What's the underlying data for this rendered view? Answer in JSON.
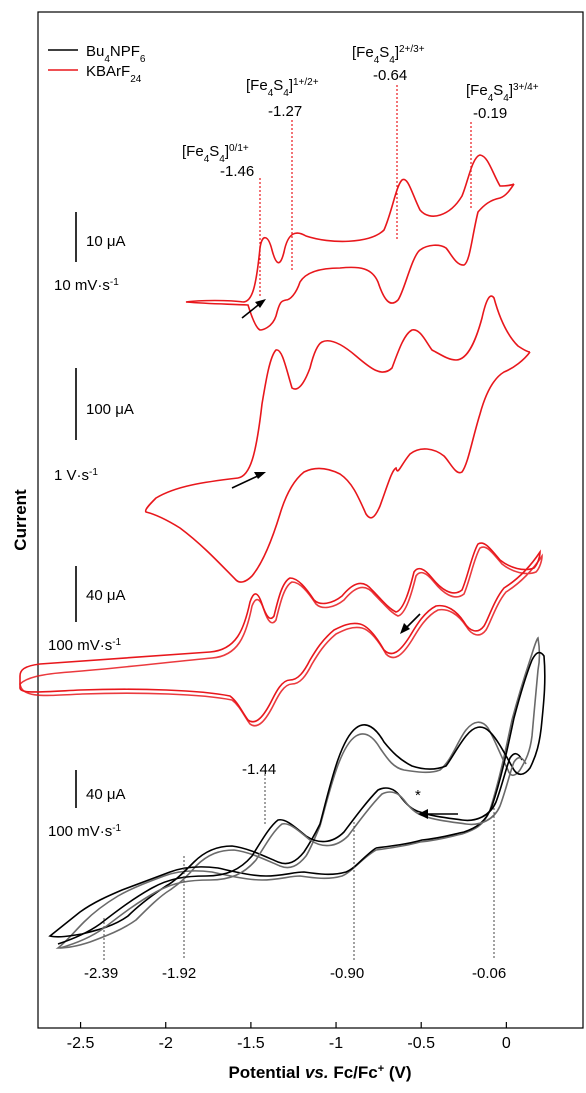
{
  "chart_data": {
    "type": "line",
    "xlabel": "Potential vs. Fc/Fc⁺ (V)",
    "xlabel_parts": {
      "pre": "Potential ",
      "italic": "vs.",
      "mid": " Fc/Fc",
      "sup": "+",
      "post": " (V)"
    },
    "ylabel": "Current",
    "xlim": [
      -2.75,
      0.45
    ],
    "x_ticks": [
      -2.5,
      -2,
      -1.5,
      -1,
      -0.5,
      0
    ],
    "x_tick_labels": [
      "-2.5",
      "-2",
      "-1.5",
      "-1",
      "-0.5",
      "0"
    ],
    "y_ticks_shown": false,
    "grid": false,
    "legend": {
      "placement": "top-left",
      "entries": [
        {
          "name": "Bu4NPF6",
          "base": "Bu",
          "sub1": "4",
          "mid": "NPF",
          "sub2": "6",
          "color": "#000000"
        },
        {
          "name": "KBArF24",
          "base": "KBArF",
          "sub1": "24",
          "color": "#e8171c"
        }
      ]
    },
    "colors": {
      "red": "#e8171c",
      "black": "#000000",
      "gray": "#6a6a6a"
    },
    "couple_labels": [
      {
        "prefix": "[Fe",
        "sub1": "4",
        "mid": "S",
        "sub2": "4",
        "close": "]",
        "sup": "0/1+",
        "value": "-1.46",
        "e": -1.46
      },
      {
        "prefix": "[Fe",
        "sub1": "4",
        "mid": "S",
        "sub2": "4",
        "close": "]",
        "sup": "1+/2+",
        "value": "-1.27",
        "e": -1.27
      },
      {
        "prefix": "[Fe",
        "sub1": "4",
        "mid": "S",
        "sub2": "4",
        "close": "]",
        "sup": "2+/3+",
        "value": "-0.64",
        "e": -0.64
      },
      {
        "prefix": "[Fe",
        "sub1": "4",
        "mid": "S",
        "sub2": "4",
        "close": "]",
        "sup": "3+/4+",
        "value": "-0.19",
        "e": -0.19
      }
    ],
    "traces": [
      {
        "name": "KBArF24 10 mV·s⁻¹",
        "electrolyte": "KBArF24",
        "scale_value": "10",
        "scale_unit": "μA",
        "rate_value": "10 mV·s",
        "rate_sup": "-1",
        "x_range": [
          -1.6,
          0.05
        ],
        "peaks_anodic": [
          -1.42,
          -1.22,
          -0.58,
          -0.15
        ],
        "peaks_cathodic": [
          -1.5,
          -1.33,
          -0.7,
          -0.23
        ]
      },
      {
        "name": "KBArF24 1 V·s⁻¹",
        "electrolyte": "KBArF24",
        "scale_value": "100",
        "scale_unit": "μA",
        "rate_value": "1 V·s",
        "rate_sup": "-1",
        "x_range": [
          -2.2,
          0.25
        ],
        "peaks_anodic": [
          -1.35,
          -1.12,
          -0.54,
          -0.07
        ],
        "peaks_cathodic": [
          -1.57,
          -1.37,
          -0.72,
          -0.25
        ]
      },
      {
        "name": "KBArF24 100 mV·s⁻¹",
        "electrolyte": "KBArF24",
        "scale_value": "40",
        "scale_unit": "μA",
        "rate_value": "100 mV·s",
        "rate_sup": "-1",
        "x_range": [
          -2.57,
          0.38
        ],
        "peaks_anodic": [
          -1.44,
          -1.15,
          -0.56,
          -0.12
        ],
        "peaks_cathodic": [
          -1.52,
          -1.33,
          -0.7,
          -0.22
        ]
      },
      {
        "name": "Bu4NPF6 100 mV·s⁻¹",
        "electrolyte": "Bu4NPF6",
        "scale_value": "40",
        "scale_unit": "μA",
        "rate_value": "100 mV·s",
        "rate_sup": "-1",
        "x_range": [
          -2.55,
          0.42
        ],
        "peaks_anodic": [
          -1.44,
          -0.72,
          0.05
        ],
        "peaks_cathodic": [
          -2.39,
          -1.92,
          -1.05,
          -0.58,
          -0.18
        ]
      }
    ],
    "bottom_annotations": [
      {
        "text": "-1.44",
        "e": -1.44
      },
      {
        "text": "-2.39",
        "e": -2.39
      },
      {
        "text": "-1.92",
        "e": -1.92
      },
      {
        "text": "-0.90",
        "e": -0.9
      },
      {
        "text": "-0.06",
        "e": -0.06
      }
    ],
    "asterisk": "*"
  }
}
